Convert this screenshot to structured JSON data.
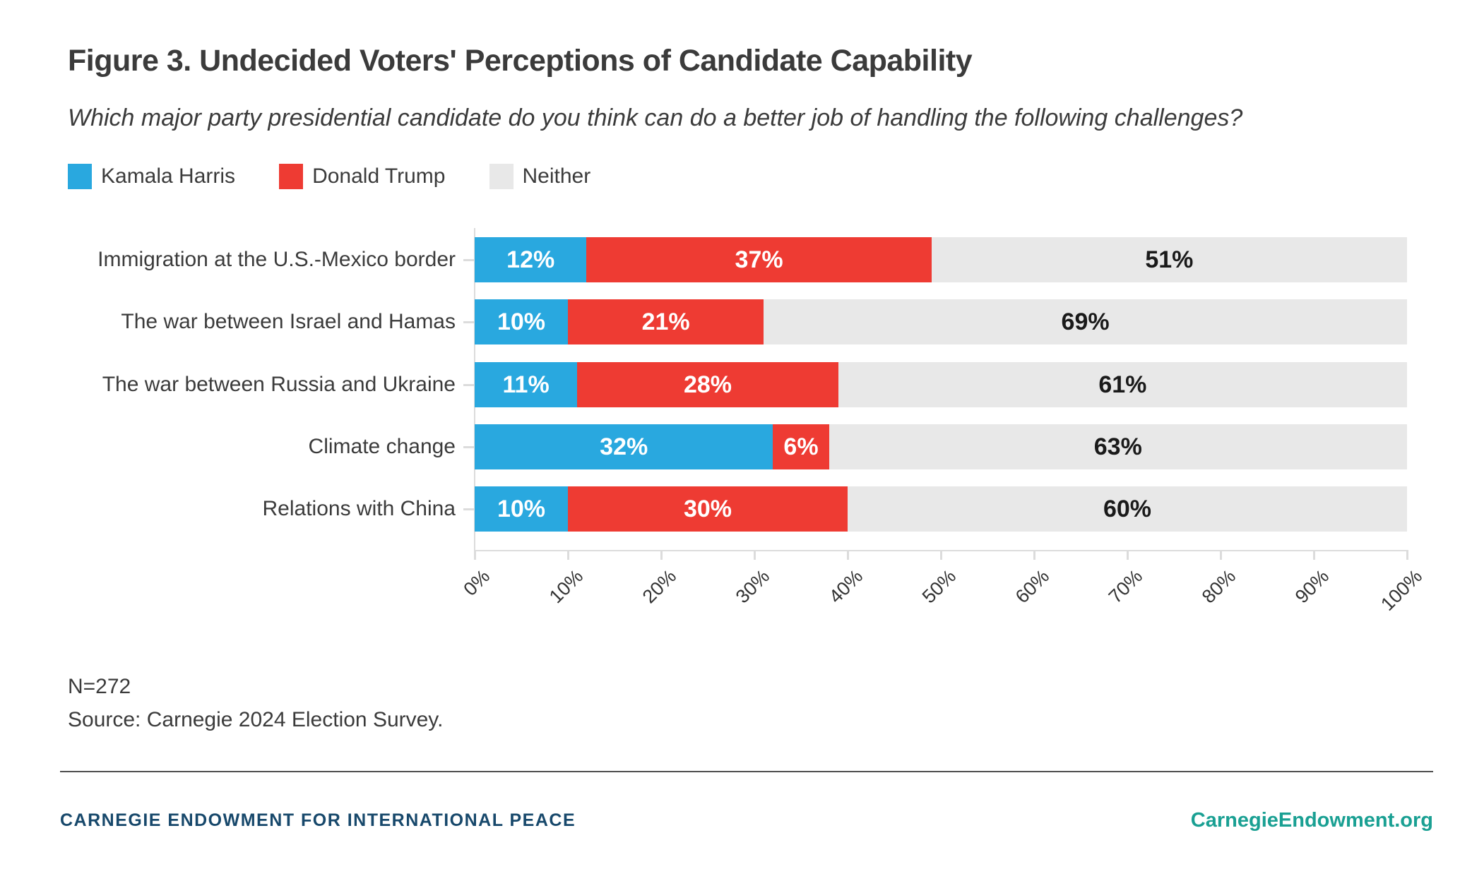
{
  "figure": {
    "title": "Figure 3. Undecided Voters' Perceptions of Candidate Capability",
    "subtitle": "Which major party presidential candidate do you think can do a better job of handling the following challenges?"
  },
  "legend": {
    "items": [
      {
        "label": "Kamala Harris",
        "color": "#29a8df"
      },
      {
        "label": "Donald Trump",
        "color": "#ee3b33"
      },
      {
        "label": "Neither",
        "color": "#e8e8e8"
      }
    ]
  },
  "chart_data": {
    "type": "bar",
    "orientation": "horizontal",
    "stacked": true,
    "categories": [
      "Immigration at the U.S.-Mexico border",
      "The war between Israel and Hamas",
      "The war between Russia and Ukraine",
      "Climate change",
      "Relations with China"
    ],
    "series": [
      {
        "name": "Kamala Harris",
        "color": "#29a8df",
        "label_color": "#ffffff",
        "values": [
          12,
          10,
          11,
          32,
          10
        ]
      },
      {
        "name": "Donald Trump",
        "color": "#ee3b33",
        "label_color": "#ffffff",
        "values": [
          37,
          21,
          28,
          6,
          30
        ]
      },
      {
        "name": "Neither",
        "color": "#e8e8e8",
        "label_color": "#1a1a1a",
        "values": [
          51,
          69,
          61,
          63,
          60
        ]
      }
    ],
    "value_suffix": "%",
    "xlim": [
      0,
      100
    ],
    "x_tick_labels": [
      "0%",
      "10%",
      "20%",
      "30%",
      "40%",
      "50%",
      "60%",
      "70%",
      "80%",
      "90%",
      "100%"
    ],
    "x_tick_angle": -45,
    "legend_position": "top",
    "gridlines": false
  },
  "notes": {
    "sample_size": "N=272",
    "source": "Source: Carnegie 2024 Election Survey."
  },
  "footer": {
    "organization": "CARNEGIE ENDOWMENT FOR INTERNATIONAL PEACE",
    "website": "CarnegieEndowment.org",
    "organization_color": "#17486b",
    "website_color": "#1aa093"
  }
}
